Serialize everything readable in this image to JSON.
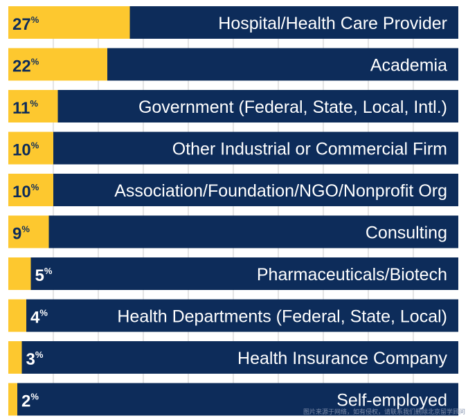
{
  "chart_data": {
    "type": "bar",
    "orientation": "horizontal",
    "title": "",
    "xlabel": "",
    "ylabel": "",
    "xlim": [
      0,
      100
    ],
    "value_suffix": "%",
    "categories": [
      "Hospital/Health Care Provider",
      "Academia",
      "Government (Federal, State, Local, Intl.)",
      "Other Industrial or Commercial Firm",
      "Association/Foundation/NGO/Nonprofit Org",
      "Consulting",
      "Pharmaceuticals/Biotech",
      "Health Departments (Federal, State, Local)",
      "Health Insurance Company",
      "Self-employed"
    ],
    "values": [
      27,
      22,
      11,
      10,
      10,
      9,
      5,
      4,
      3,
      2
    ],
    "colors": {
      "fill": "#fdc82f",
      "track": "#0d2c5a",
      "label_on_fill": "#0d2c5a",
      "label_on_track": "#ffffff",
      "gridline": "#c8c8c8"
    }
  },
  "watermark": "图片来源于网络，如有侵权，请联系我们删除北京留学顾问"
}
